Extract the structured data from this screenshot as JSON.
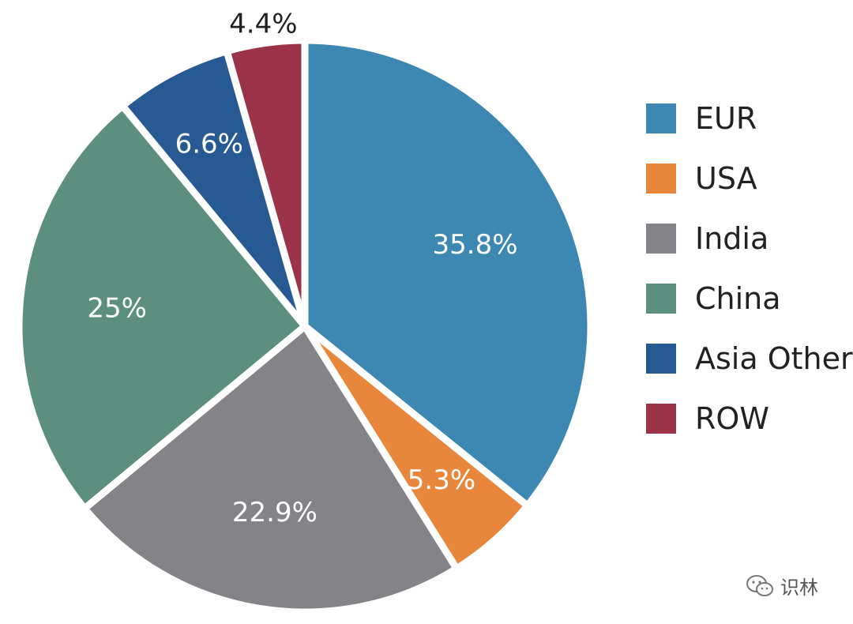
{
  "chart_data": {
    "type": "pie",
    "slices": [
      {
        "label": "EUR",
        "value": 35.8,
        "value_label": "35.8%",
        "color": "#3d88b2"
      },
      {
        "label": "USA",
        "value": 5.3,
        "value_label": "5.3%",
        "color": "#e8873b"
      },
      {
        "label": "India",
        "value": 22.9,
        "value_label": "22.9%",
        "color": "#838388"
      },
      {
        "label": "China",
        "value": 25,
        "value_label": "25%",
        "color": "#5c8f80"
      },
      {
        "label": "Asia Other",
        "value": 6.6,
        "value_label": "6.6%",
        "color": "#275993"
      },
      {
        "label": "ROW",
        "value": 4.4,
        "value_label": "4.4%",
        "color": "#9b3447"
      }
    ],
    "start": "12 o'clock",
    "direction": "clockwise",
    "legend_position": "right"
  },
  "watermark": {
    "text": "识林",
    "icon": "wechat-icon"
  }
}
